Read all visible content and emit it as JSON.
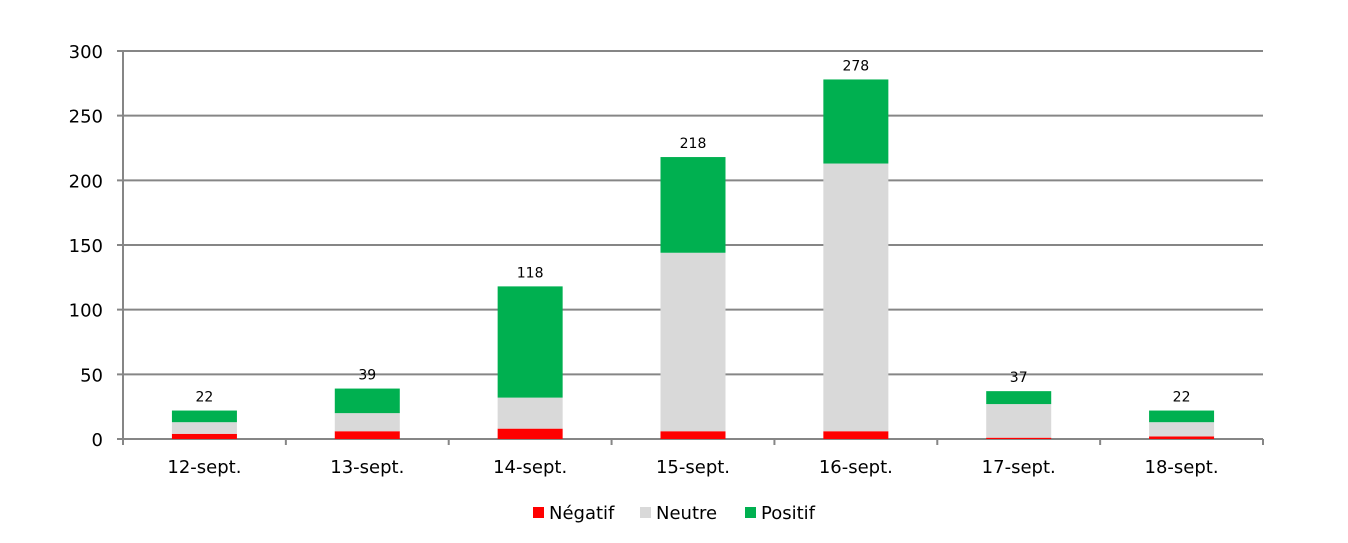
{
  "chart_data": {
    "type": "bar",
    "stacked": true,
    "title": "",
    "xlabel": "",
    "ylabel": "",
    "ylim": [
      0,
      300
    ],
    "yticks": [
      0,
      50,
      100,
      150,
      200,
      250,
      300
    ],
    "grid": true,
    "legend_position": "bottom",
    "categories": [
      "12-sept.",
      "13-sept.",
      "14-sept.",
      "15-sept.",
      "16-sept.",
      "17-sept.",
      "18-sept."
    ],
    "series": [
      {
        "name": "Négatif",
        "color": "#ff0000",
        "values": [
          4,
          6,
          8,
          6,
          6,
          1,
          2
        ]
      },
      {
        "name": "Neutre",
        "color": "#d9d9d9",
        "values": [
          9,
          14,
          24,
          138,
          207,
          26,
          11
        ]
      },
      {
        "name": "Positif",
        "color": "#00b050",
        "values": [
          9,
          19,
          86,
          74,
          65,
          10,
          9
        ]
      }
    ],
    "totals": [
      "22",
      "39",
      "118",
      "218",
      "278",
      "37",
      "22"
    ]
  }
}
